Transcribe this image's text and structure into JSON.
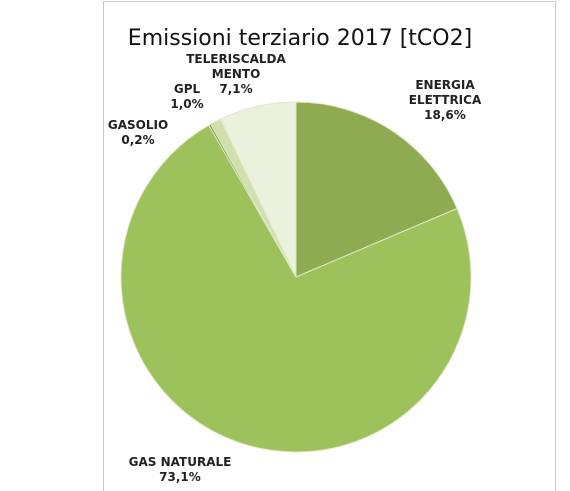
{
  "chart_data": {
    "type": "pie",
    "title": "Emissioni terziario 2017 [tCO2]",
    "categories": [
      "ENERGIA\nELETTRICA",
      "GAS NATURALE",
      "GASOLIO",
      "GPL",
      "TELERISCALDA\nMENTO"
    ],
    "values": [
      18.6,
      73.1,
      0.2,
      1.0,
      7.1
    ],
    "value_labels": [
      "18,6%",
      "73,1%",
      "0,2%",
      "1,0%",
      "7,1%"
    ],
    "colors": [
      "#8eab52",
      "#9dc15b",
      "#7b9a3f",
      "#cfe0ac",
      "#eaf1dc"
    ]
  }
}
